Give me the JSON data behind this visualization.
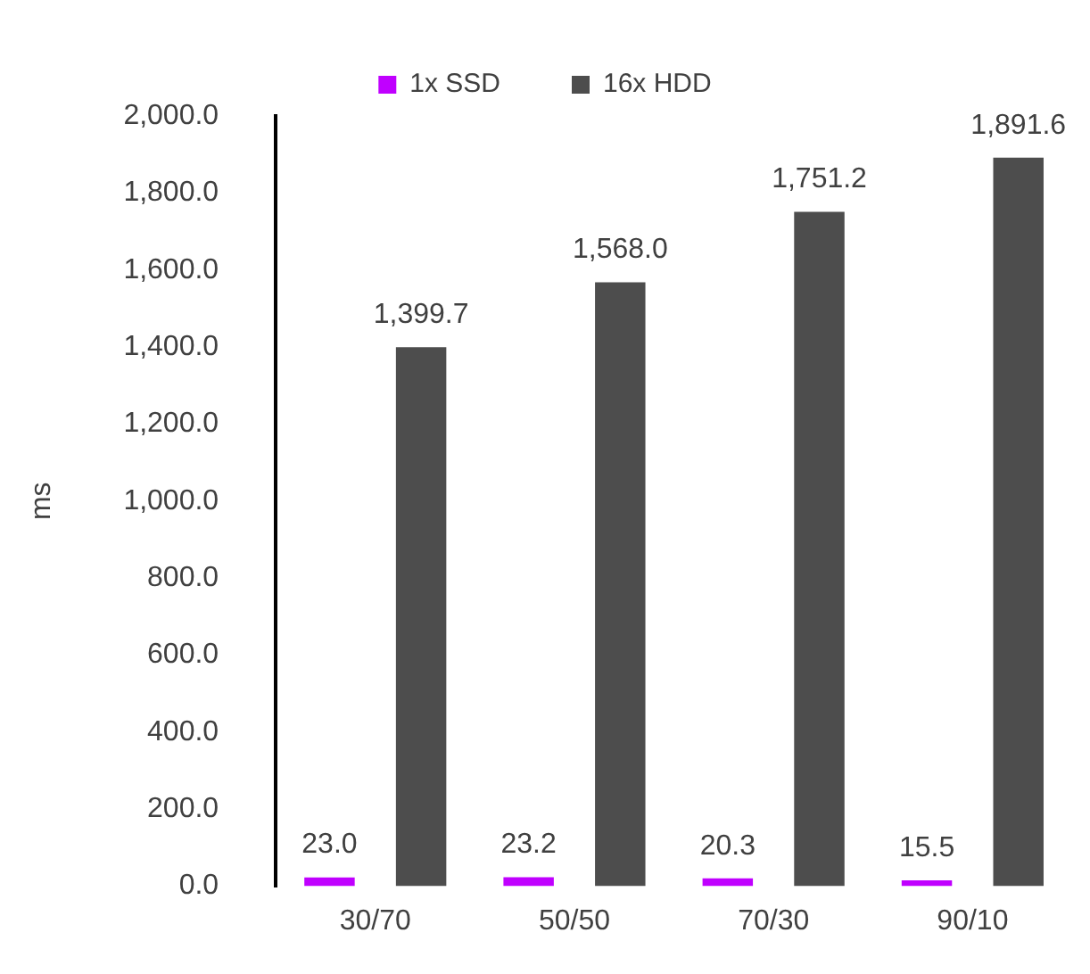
{
  "chart_data": {
    "type": "bar",
    "ylabel": "ms",
    "categories": [
      "30/70",
      "50/50",
      "70/30",
      "90/10"
    ],
    "series": [
      {
        "name": "1x SSD",
        "color": "#c000ff",
        "values": [
          23.0,
          23.2,
          20.3,
          15.5
        ],
        "value_labels": [
          "23.0",
          "23.2",
          "20.3",
          "15.5"
        ]
      },
      {
        "name": "16x HDD",
        "color": "#4d4d4d",
        "values": [
          1399.7,
          1568.0,
          1751.2,
          1891.6
        ],
        "value_labels": [
          "1,399.7",
          "1,568.0",
          "1,751.2",
          "1,891.6"
        ]
      }
    ],
    "ylim": [
      0,
      2000
    ],
    "yticks": [
      {
        "value": 0,
        "label": "0.0"
      },
      {
        "value": 200,
        "label": "200.0"
      },
      {
        "value": 400,
        "label": "400.0"
      },
      {
        "value": 600,
        "label": "600.0"
      },
      {
        "value": 800,
        "label": "800.0"
      },
      {
        "value": 1000,
        "label": "1,000.0"
      },
      {
        "value": 1200,
        "label": "1,200.0"
      },
      {
        "value": 1400,
        "label": "1,400.0"
      },
      {
        "value": 1600,
        "label": "1,600.0"
      },
      {
        "value": 1800,
        "label": "1,800.0"
      },
      {
        "value": 2000,
        "label": "2,000.0"
      }
    ],
    "grid": false,
    "legend": "top"
  }
}
